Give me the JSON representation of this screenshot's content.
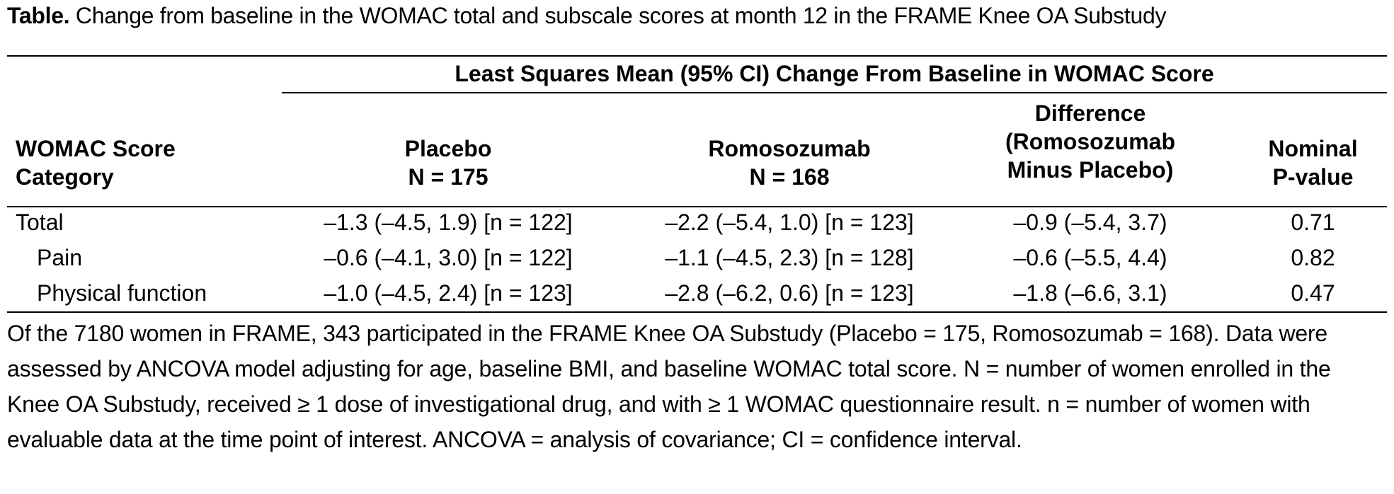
{
  "caption": {
    "label": "Table.",
    "text": " Change from baseline in the WOMAC total and subscale scores at month 12 in the FRAME Knee OA Substudy"
  },
  "header": {
    "spanner": "Least Squares Mean (95% CI) Change From Baseline in WOMAC Score",
    "category": [
      "WOMAC Score",
      "Category"
    ],
    "placebo": [
      "Placebo",
      "N = 175"
    ],
    "romosozumab": [
      "Romosozumab",
      "N = 168"
    ],
    "difference": [
      "Difference",
      "(Romosozumab",
      "Minus Placebo)"
    ],
    "pvalue": [
      "Nominal",
      "P-value"
    ]
  },
  "rows": [
    {
      "label": "Total",
      "placebo": "–1.3 (–4.5, 1.9) [n = 122]",
      "romosozumab": "–2.2 (–5.4, 1.0) [n = 123]",
      "difference": "–0.9 (–5.4, 3.7)",
      "pvalue": "0.71"
    },
    {
      "label": "Pain",
      "placebo": "–0.6 (–4.1, 3.0) [n = 122]",
      "romosozumab": "–1.1 (–4.5, 2.3) [n = 128]",
      "difference": "–0.6 (–5.5, 4.4)",
      "pvalue": "0.82"
    },
    {
      "label": "Physical function",
      "placebo": "–1.0 (–4.5, 2.4) [n = 123]",
      "romosozumab": "–2.8 (–6.2, 0.6) [n = 123]",
      "difference": "–1.8 (–6.6, 3.1)",
      "pvalue": "0.47"
    }
  ],
  "footnote": "Of the 7180 women in FRAME, 343 participated in the FRAME Knee OA Substudy (Placebo = 175, Romosozumab = 168). Data were assessed by ANCOVA model adjusting for age, baseline BMI, and baseline WOMAC total score. N = number of women enrolled in the Knee OA Substudy, received ≥ 1 dose of investigational drug, and with ≥ 1 WOMAC questionnaire result. n = number of women with evaluable data at the time point of interest. ANCOVA = analysis of covariance; CI = confidence interval."
}
